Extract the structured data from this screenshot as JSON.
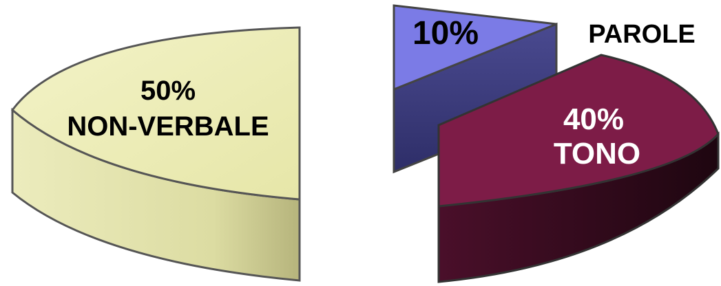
{
  "chart_data": {
    "type": "pie",
    "style": "3d-exploded",
    "slices": [
      {
        "id": "nonverbale",
        "value": 50,
        "pct_label": "50%",
        "name": "NON-VERBALE",
        "color": "#e8e8a8"
      },
      {
        "id": "parole",
        "value": 10,
        "pct_label": "10%",
        "name": "PAROLE",
        "color": "#7b7be6"
      },
      {
        "id": "tono",
        "value": 40,
        "pct_label": "40%",
        "name": "TONO",
        "color": "#7d1c47"
      }
    ]
  }
}
